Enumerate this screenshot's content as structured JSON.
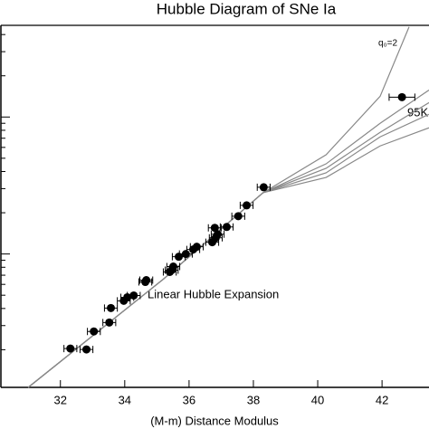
{
  "chart_data": {
    "type": "scatter",
    "title": "Hubble Diagram of SNe Ia",
    "x_label": "(M-m) Distance Modulus",
    "annotations": [
      "Linear Hubble Expansion",
      "95K"
    ],
    "log_y": true,
    "xlim": [
      30.15,
      43.46
    ],
    "xticks": [
      32,
      34,
      36,
      38,
      40,
      42
    ],
    "ylim": [
      1062,
      467000
    ],
    "yticks": [
      2000,
      3000,
      4000,
      5000,
      6000,
      7000,
      8000,
      9000,
      10000,
      20000,
      30000,
      40000,
      50000,
      60000,
      70000,
      80000,
      90000,
      100000,
      200000,
      300000,
      400000
    ],
    "color": "#000000",
    "x": [
      32.31,
      32.81,
      33.04,
      33.52,
      33.57,
      33.97,
      34.08,
      34.28,
      34.64,
      34.67,
      35.4,
      35.46,
      35.51,
      35.68,
      35.9,
      36.13,
      36.24,
      36.72,
      36.83,
      36.89,
      36.8,
      37.17,
      37.53,
      37.79,
      38.32,
      42.62
    ],
    "values": [
      2040,
      2010,
      2720,
      3160,
      4030,
      4550,
      4830,
      4980,
      6250,
      6440,
      7390,
      7620,
      8090,
      9550,
      10000,
      10790,
      11290,
      12190,
      13130,
      13960,
      15520,
      15750,
      18880,
      22650,
      30690,
      139700
    ],
    "x_errors": [
      0.2,
      0.2,
      0.2,
      0.2,
      0.2,
      0.2,
      0.2,
      0.2,
      0.2,
      0.2,
      0.2,
      0.2,
      0.2,
      0.2,
      0.2,
      0.2,
      0.2,
      0.2,
      0.2,
      0.2,
      0.2,
      0.2,
      0.2,
      0.2,
      0.2,
      0.4
    ],
    "curves": [
      {
        "name": "q₀=2",
        "color": "#888888",
        "x": [
          31.0,
          35.2,
          38.3,
          40.26,
          41.94,
          42.84
        ],
        "values": [
          1062,
          6550,
          28000,
          53000,
          141600,
          455000
        ]
      },
      {
        "color": "#888888",
        "x": [
          31.0,
          35.2,
          38.3,
          40.26,
          41.94,
          43.46
        ],
        "values": [
          1062,
          6550,
          28000,
          45500,
          90000,
          157400
        ]
      },
      {
        "color": "#888888",
        "x": [
          31.0,
          35.2,
          38.3,
          40.26,
          41.94,
          43.46
        ],
        "values": [
          1062,
          6550,
          28000,
          42200,
          77300,
          127400
        ]
      },
      {
        "color": "#888888",
        "x": [
          31.0,
          35.2,
          38.3,
          40.26,
          41.94,
          43.46
        ],
        "values": [
          1062,
          6550,
          28000,
          39100,
          71600,
          104700
        ]
      },
      {
        "color": "#888888",
        "x": [
          31.0,
          35.2,
          38.3,
          40.26,
          41.94,
          43.46
        ],
        "values": [
          1062,
          6550,
          28000,
          36200,
          61500,
          83400
        ]
      }
    ]
  }
}
